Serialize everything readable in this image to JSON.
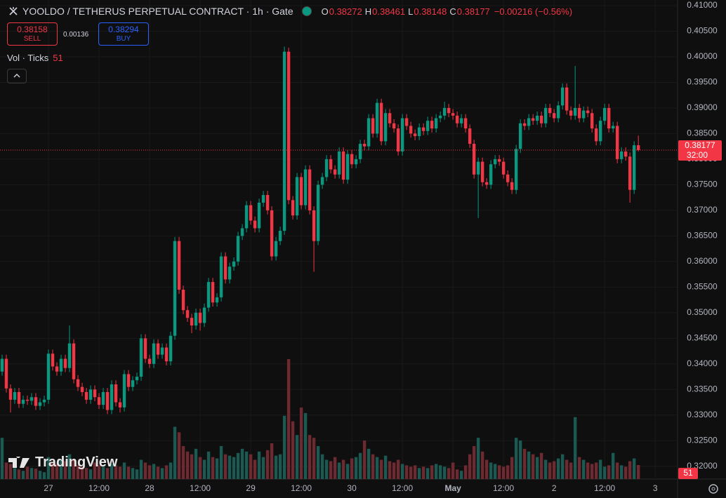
{
  "header": {
    "symbol": "YOOLDO / TETHERUS PERPETUAL CONTRACT · 1h · Gate",
    "ohlc_labels": [
      "O",
      "H",
      "L",
      "C"
    ],
    "change": "−0.00216 (−0.56%)"
  },
  "order_panel": {
    "sell_price": 0.38158,
    "sell_label": "SELL",
    "spread": 0.00136,
    "buy_price": 0.38294,
    "buy_label": "BUY"
  },
  "volume_legend": {
    "label": "Vol · Ticks"
  },
  "countdown": "32:00",
  "watermark": "TradingView",
  "chart_data": {
    "type": "candlestick",
    "x": [
      -11,
      -10,
      -9,
      -8,
      -7,
      -6,
      -5,
      -4,
      -3,
      -2,
      -1,
      0,
      1,
      2,
      3,
      4,
      5,
      6,
      7,
      8,
      9,
      10,
      11,
      12,
      13,
      14,
      15,
      16,
      17,
      18,
      19,
      20,
      21,
      22,
      23,
      24,
      25,
      26,
      27,
      28,
      29,
      30,
      31,
      32,
      33,
      34,
      35,
      36,
      37,
      38,
      39,
      40,
      41,
      42,
      43,
      44,
      45,
      46,
      47,
      48,
      49,
      50,
      51,
      52,
      53,
      54,
      55,
      56,
      57,
      58,
      59,
      60,
      61,
      62,
      63,
      64,
      65,
      66,
      67,
      68,
      69,
      70,
      71,
      72,
      73,
      74,
      75,
      76,
      77,
      78,
      79,
      80,
      81,
      82,
      83,
      84,
      85,
      86,
      87,
      88,
      89,
      90,
      91,
      92,
      93,
      94,
      95,
      96,
      97,
      98,
      99,
      100,
      101,
      102,
      103,
      104,
      105,
      106,
      107,
      108,
      109,
      110,
      111,
      112,
      113,
      114,
      115,
      116,
      117,
      118,
      119,
      120,
      121,
      122,
      123,
      124,
      125,
      126,
      127,
      128,
      129,
      130,
      131,
      132,
      133,
      134,
      135,
      136,
      137,
      138,
      139,
      140
    ],
    "open": [
      0.3385,
      0.341,
      0.3352,
      0.333,
      0.3345,
      0.3322,
      0.333,
      0.3328,
      0.3335,
      0.3318,
      0.3325,
      0.333,
      0.342,
      0.3395,
      0.3385,
      0.341,
      0.3392,
      0.344,
      0.337,
      0.3355,
      0.3345,
      0.333,
      0.335,
      0.3335,
      0.332,
      0.3345,
      0.331,
      0.336,
      0.3325,
      0.3315,
      0.338,
      0.3355,
      0.3368,
      0.3375,
      0.345,
      0.341,
      0.34,
      0.344,
      0.3418,
      0.3432,
      0.3405,
      0.3455,
      0.364,
      0.3545,
      0.3505,
      0.349,
      0.3475,
      0.35,
      0.348,
      0.351,
      0.356,
      0.352,
      0.353,
      0.361,
      0.3565,
      0.359,
      0.36,
      0.365,
      0.3665,
      0.371,
      0.368,
      0.3665,
      0.3715,
      0.373,
      0.37,
      0.361,
      0.364,
      0.366,
      0.401,
      0.372,
      0.369,
      0.3765,
      0.371,
      0.378,
      0.37,
      0.364,
      0.375,
      0.3765,
      0.38,
      0.378,
      0.377,
      0.3815,
      0.376,
      0.381,
      0.379,
      0.38,
      0.383,
      0.3825,
      0.388,
      0.385,
      0.391,
      0.3835,
      0.389,
      0.387,
      0.386,
      0.3815,
      0.388,
      0.3865,
      0.385,
      0.3845,
      0.3862,
      0.3855,
      0.3875,
      0.386,
      0.388,
      0.3885,
      0.39,
      0.389,
      0.3885,
      0.387,
      0.388,
      0.386,
      0.383,
      0.377,
      0.3795,
      0.3755,
      0.375,
      0.379,
      0.38,
      0.3795,
      0.377,
      0.3755,
      0.374,
      0.382,
      0.387,
      0.3865,
      0.388,
      0.3875,
      0.3885,
      0.387,
      0.39,
      0.389,
      0.388,
      0.3905,
      0.394,
      0.3895,
      0.3885,
      0.39,
      0.388,
      0.3895,
      0.389,
      0.386,
      0.3835,
      0.3875,
      0.39,
      0.386,
      0.3865,
      0.38,
      0.3815,
      0.3805,
      0.374,
      0.38272
    ],
    "high": [
      0.3418,
      0.3418,
      0.336,
      0.3353,
      0.3353,
      0.3338,
      0.3338,
      0.3343,
      0.3343,
      0.3333,
      0.3338,
      0.3428,
      0.3428,
      0.3403,
      0.3418,
      0.3418,
      0.3475,
      0.3448,
      0.3378,
      0.3363,
      0.3353,
      0.3358,
      0.3358,
      0.3343,
      0.3353,
      0.3353,
      0.3368,
      0.3368,
      0.3333,
      0.3388,
      0.3388,
      0.3376,
      0.3383,
      0.3458,
      0.3458,
      0.3418,
      0.3448,
      0.3448,
      0.344,
      0.344,
      0.3463,
      0.3648,
      0.3648,
      0.3553,
      0.3513,
      0.3498,
      0.3508,
      0.3508,
      0.3518,
      0.3568,
      0.3568,
      0.3538,
      0.3618,
      0.3618,
      0.3598,
      0.3608,
      0.3658,
      0.3673,
      0.3718,
      0.3718,
      0.3688,
      0.3723,
      0.3738,
      0.3738,
      0.3708,
      0.3648,
      0.3668,
      0.402,
      0.4018,
      0.3728,
      0.3773,
      0.3773,
      0.3788,
      0.3788,
      0.3708,
      0.3758,
      0.3773,
      0.3808,
      0.3808,
      0.3788,
      0.3823,
      0.3823,
      0.3818,
      0.3818,
      0.3808,
      0.3838,
      0.3838,
      0.3888,
      0.3888,
      0.3918,
      0.3918,
      0.3898,
      0.3898,
      0.3878,
      0.3868,
      0.3888,
      0.3888,
      0.3873,
      0.3858,
      0.387,
      0.387,
      0.3883,
      0.3883,
      0.3888,
      0.3893,
      0.3912,
      0.3908,
      0.3898,
      0.3893,
      0.3888,
      0.3888,
      0.3868,
      0.3838,
      0.3803,
      0.3803,
      0.3763,
      0.3798,
      0.3808,
      0.3808,
      0.3803,
      0.3778,
      0.3763,
      0.3828,
      0.3878,
      0.3878,
      0.3888,
      0.3888,
      0.3893,
      0.3893,
      0.3908,
      0.3908,
      0.3898,
      0.3913,
      0.3948,
      0.3948,
      0.3903,
      0.3982,
      0.3908,
      0.3903,
      0.3903,
      0.3898,
      0.3868,
      0.3883,
      0.3908,
      0.3908,
      0.3873,
      0.3873,
      0.3823,
      0.3823,
      0.3813,
      0.3835,
      0.38461
    ],
    "low": [
      0.3377,
      0.3344,
      0.3305,
      0.3322,
      0.3314,
      0.3314,
      0.332,
      0.332,
      0.331,
      0.331,
      0.3317,
      0.3322,
      0.3387,
      0.3377,
      0.3377,
      0.3384,
      0.3384,
      0.3362,
      0.3347,
      0.3337,
      0.3322,
      0.3322,
      0.3327,
      0.3312,
      0.3312,
      0.3302,
      0.3302,
      0.3317,
      0.3305,
      0.3307,
      0.3347,
      0.3347,
      0.336,
      0.3367,
      0.3402,
      0.3392,
      0.3392,
      0.341,
      0.341,
      0.3397,
      0.3397,
      0.3447,
      0.3537,
      0.3497,
      0.3482,
      0.346,
      0.3467,
      0.3465,
      0.3472,
      0.3502,
      0.3512,
      0.3512,
      0.3522,
      0.3557,
      0.3557,
      0.3582,
      0.3592,
      0.3642,
      0.3657,
      0.3672,
      0.3657,
      0.3657,
      0.3707,
      0.3692,
      0.3602,
      0.3602,
      0.3632,
      0.3652,
      0.3712,
      0.3682,
      0.3682,
      0.3702,
      0.3702,
      0.3692,
      0.358,
      0.3632,
      0.3742,
      0.3757,
      0.3772,
      0.3762,
      0.3762,
      0.3752,
      0.3752,
      0.3782,
      0.3782,
      0.3792,
      0.3817,
      0.3817,
      0.3842,
      0.3842,
      0.3827,
      0.3827,
      0.3862,
      0.3852,
      0.3807,
      0.3807,
      0.3857,
      0.3842,
      0.3837,
      0.3837,
      0.3847,
      0.3847,
      0.3852,
      0.3852,
      0.3872,
      0.3877,
      0.3882,
      0.3877,
      0.3862,
      0.3862,
      0.3852,
      0.3822,
      0.3762,
      0.3685,
      0.3747,
      0.3742,
      0.3742,
      0.3782,
      0.3787,
      0.3762,
      0.3747,
      0.3732,
      0.3732,
      0.3812,
      0.3857,
      0.3857,
      0.3867,
      0.3867,
      0.3862,
      0.3862,
      0.3882,
      0.3872,
      0.3872,
      0.3897,
      0.3887,
      0.3877,
      0.3877,
      0.3872,
      0.3872,
      0.3882,
      0.3852,
      0.3827,
      0.3827,
      0.3867,
      0.3852,
      0.3852,
      0.3792,
      0.3792,
      0.3797,
      0.3715,
      0.3732,
      0.38148
    ],
    "close": [
      0.341,
      0.3352,
      0.333,
      0.3345,
      0.3322,
      0.333,
      0.3328,
      0.3335,
      0.3318,
      0.3325,
      0.333,
      0.342,
      0.3395,
      0.3385,
      0.341,
      0.3392,
      0.344,
      0.337,
      0.3355,
      0.3345,
      0.333,
      0.335,
      0.3335,
      0.332,
      0.3345,
      0.331,
      0.336,
      0.3325,
      0.3315,
      0.338,
      0.3355,
      0.3368,
      0.3375,
      0.345,
      0.341,
      0.34,
      0.344,
      0.3418,
      0.3432,
      0.3405,
      0.3455,
      0.364,
      0.3545,
      0.3505,
      0.349,
      0.3475,
      0.35,
      0.348,
      0.351,
      0.356,
      0.352,
      0.353,
      0.361,
      0.3565,
      0.359,
      0.36,
      0.365,
      0.3665,
      0.371,
      0.368,
      0.3665,
      0.3715,
      0.373,
      0.37,
      0.361,
      0.364,
      0.366,
      0.401,
      0.372,
      0.369,
      0.3765,
      0.371,
      0.378,
      0.37,
      0.364,
      0.375,
      0.3765,
      0.38,
      0.378,
      0.377,
      0.3815,
      0.376,
      0.381,
      0.379,
      0.38,
      0.383,
      0.3825,
      0.388,
      0.385,
      0.391,
      0.3835,
      0.389,
      0.387,
      0.386,
      0.3815,
      0.388,
      0.3865,
      0.385,
      0.3845,
      0.3862,
      0.3855,
      0.3875,
      0.386,
      0.388,
      0.3885,
      0.39,
      0.389,
      0.3885,
      0.387,
      0.388,
      0.386,
      0.383,
      0.377,
      0.3795,
      0.3755,
      0.375,
      0.379,
      0.38,
      0.3795,
      0.377,
      0.3755,
      0.374,
      0.382,
      0.387,
      0.3865,
      0.388,
      0.3875,
      0.3885,
      0.387,
      0.39,
      0.389,
      0.388,
      0.3905,
      0.394,
      0.3895,
      0.3885,
      0.39,
      0.388,
      0.3895,
      0.389,
      0.386,
      0.3835,
      0.3875,
      0.39,
      0.386,
      0.3865,
      0.38,
      0.3815,
      0.3805,
      0.374,
      0.38272,
      0.38177
    ],
    "volume": [
      150,
      60,
      55,
      40,
      35,
      30,
      45,
      40,
      38,
      30,
      25,
      80,
      60,
      55,
      70,
      65,
      90,
      70,
      50,
      45,
      40,
      35,
      60,
      50,
      45,
      40,
      55,
      50,
      45,
      60,
      45,
      40,
      35,
      70,
      60,
      50,
      55,
      45,
      40,
      50,
      60,
      190,
      170,
      120,
      100,
      90,
      110,
      80,
      70,
      100,
      80,
      75,
      120,
      90,
      85,
      80,
      95,
      110,
      100,
      90,
      70,
      100,
      80,
      105,
      130,
      85,
      90,
      230,
      436,
      210,
      160,
      260,
      240,
      160,
      150,
      120,
      90,
      70,
      65,
      80,
      60,
      70,
      55,
      75,
      80,
      95,
      140,
      110,
      90,
      80,
      70,
      85,
      65,
      60,
      70,
      55,
      50,
      45,
      50,
      40,
      45,
      40,
      50,
      55,
      50,
      45,
      40,
      60,
      35,
      30,
      50,
      90,
      120,
      150,
      100,
      70,
      60,
      55,
      50,
      45,
      50,
      80,
      150,
      140,
      110,
      100,
      90,
      80,
      95,
      70,
      60,
      65,
      75,
      90,
      70,
      60,
      225,
      80,
      70,
      60,
      55,
      60,
      70,
      45,
      50,
      95,
      60,
      50,
      45,
      65,
      75,
      51
    ],
    "up_color": "#089981",
    "down_color": "#f23645",
    "volume_up_color": "#1b5a53",
    "volume_down_color": "#6e2a30",
    "xlim": [
      -11.5,
      149.3
    ],
    "xticks": [
      {
        "value": 0,
        "label": "27"
      },
      {
        "value": 12,
        "label": "12:00"
      },
      {
        "value": 24,
        "label": "28"
      },
      {
        "value": 36,
        "label": "12:00"
      },
      {
        "value": 48,
        "label": "29"
      },
      {
        "value": 60,
        "label": "12:00"
      },
      {
        "value": 72,
        "label": "30"
      },
      {
        "value": 84,
        "label": "12:00"
      },
      {
        "value": 96,
        "label": "May"
      },
      {
        "value": 108,
        "label": "12:00"
      },
      {
        "value": 120,
        "label": "2"
      },
      {
        "value": 132,
        "label": "12:00"
      },
      {
        "value": 144,
        "label": "3"
      }
    ],
    "ylim": [
      0.3175,
      0.41
    ],
    "yticks": [
      {
        "value": 0.32,
        "label": "0.32000"
      },
      {
        "value": 0.325,
        "label": "0.32500"
      },
      {
        "value": 0.33,
        "label": "0.33000"
      },
      {
        "value": 0.335,
        "label": "0.33500"
      },
      {
        "value": 0.34,
        "label": "0.34000"
      },
      {
        "value": 0.345,
        "label": "0.34500"
      },
      {
        "value": 0.35,
        "label": "0.35000"
      },
      {
        "value": 0.355,
        "label": "0.35500"
      },
      {
        "value": 0.36,
        "label": "0.36000"
      },
      {
        "value": 0.365,
        "label": "0.36500"
      },
      {
        "value": 0.37,
        "label": "0.37000"
      },
      {
        "value": 0.375,
        "label": "0.37500"
      },
      {
        "value": 0.38,
        "label": "0.38000"
      },
      {
        "value": 0.385,
        "label": "0.38500"
      },
      {
        "value": 0.39,
        "label": "0.39000"
      },
      {
        "value": 0.395,
        "label": "0.39500"
      },
      {
        "value": 0.4,
        "label": "0.40000"
      },
      {
        "value": 0.405,
        "label": "0.40500"
      },
      {
        "value": 0.41,
        "label": "0.41000"
      }
    ],
    "grid": true
  }
}
